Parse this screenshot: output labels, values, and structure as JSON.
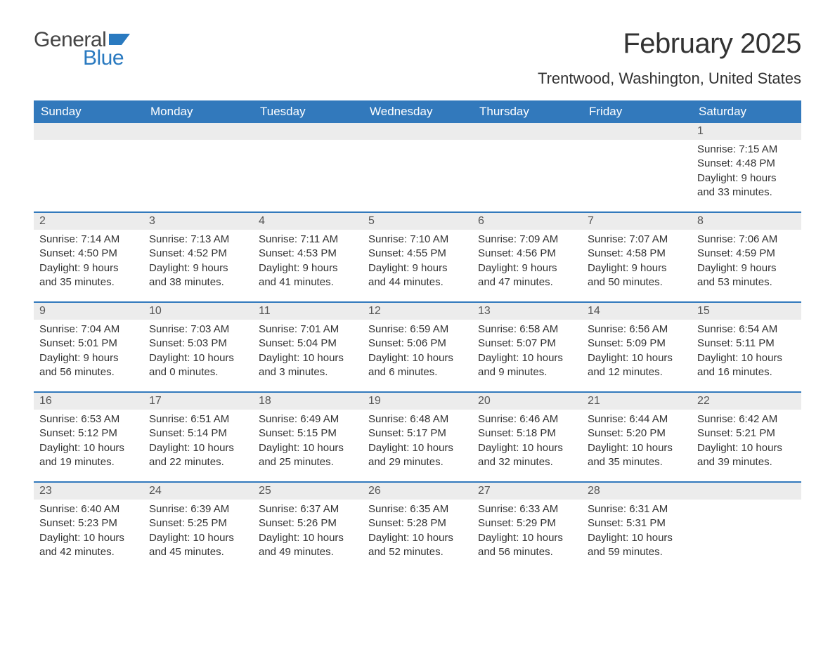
{
  "brand": {
    "word1": "General",
    "word2": "Blue",
    "word1_color": "#444444",
    "word2_color": "#2a7ac0",
    "flag_color": "#2a7ac0"
  },
  "title": "February 2025",
  "location": "Trentwood, Washington, United States",
  "colors": {
    "header_bg": "#3279bc",
    "header_text": "#ffffff",
    "week_divider": "#3279bc",
    "daynum_bg": "#ececec",
    "text": "#333333",
    "page_bg": "#ffffff"
  },
  "typography": {
    "title_fontsize": 40,
    "location_fontsize": 22,
    "weekday_fontsize": 17,
    "daynum_fontsize": 16,
    "body_fontsize": 15
  },
  "weekdays": [
    "Sunday",
    "Monday",
    "Tuesday",
    "Wednesday",
    "Thursday",
    "Friday",
    "Saturday"
  ],
  "weeks": [
    [
      null,
      null,
      null,
      null,
      null,
      null,
      {
        "n": "1",
        "sunrise": "Sunrise: 7:15 AM",
        "sunset": "Sunset: 4:48 PM",
        "dl1": "Daylight: 9 hours",
        "dl2": "and 33 minutes."
      }
    ],
    [
      {
        "n": "2",
        "sunrise": "Sunrise: 7:14 AM",
        "sunset": "Sunset: 4:50 PM",
        "dl1": "Daylight: 9 hours",
        "dl2": "and 35 minutes."
      },
      {
        "n": "3",
        "sunrise": "Sunrise: 7:13 AM",
        "sunset": "Sunset: 4:52 PM",
        "dl1": "Daylight: 9 hours",
        "dl2": "and 38 minutes."
      },
      {
        "n": "4",
        "sunrise": "Sunrise: 7:11 AM",
        "sunset": "Sunset: 4:53 PM",
        "dl1": "Daylight: 9 hours",
        "dl2": "and 41 minutes."
      },
      {
        "n": "5",
        "sunrise": "Sunrise: 7:10 AM",
        "sunset": "Sunset: 4:55 PM",
        "dl1": "Daylight: 9 hours",
        "dl2": "and 44 minutes."
      },
      {
        "n": "6",
        "sunrise": "Sunrise: 7:09 AM",
        "sunset": "Sunset: 4:56 PM",
        "dl1": "Daylight: 9 hours",
        "dl2": "and 47 minutes."
      },
      {
        "n": "7",
        "sunrise": "Sunrise: 7:07 AM",
        "sunset": "Sunset: 4:58 PM",
        "dl1": "Daylight: 9 hours",
        "dl2": "and 50 minutes."
      },
      {
        "n": "8",
        "sunrise": "Sunrise: 7:06 AM",
        "sunset": "Sunset: 4:59 PM",
        "dl1": "Daylight: 9 hours",
        "dl2": "and 53 minutes."
      }
    ],
    [
      {
        "n": "9",
        "sunrise": "Sunrise: 7:04 AM",
        "sunset": "Sunset: 5:01 PM",
        "dl1": "Daylight: 9 hours",
        "dl2": "and 56 minutes."
      },
      {
        "n": "10",
        "sunrise": "Sunrise: 7:03 AM",
        "sunset": "Sunset: 5:03 PM",
        "dl1": "Daylight: 10 hours",
        "dl2": "and 0 minutes."
      },
      {
        "n": "11",
        "sunrise": "Sunrise: 7:01 AM",
        "sunset": "Sunset: 5:04 PM",
        "dl1": "Daylight: 10 hours",
        "dl2": "and 3 minutes."
      },
      {
        "n": "12",
        "sunrise": "Sunrise: 6:59 AM",
        "sunset": "Sunset: 5:06 PM",
        "dl1": "Daylight: 10 hours",
        "dl2": "and 6 minutes."
      },
      {
        "n": "13",
        "sunrise": "Sunrise: 6:58 AM",
        "sunset": "Sunset: 5:07 PM",
        "dl1": "Daylight: 10 hours",
        "dl2": "and 9 minutes."
      },
      {
        "n": "14",
        "sunrise": "Sunrise: 6:56 AM",
        "sunset": "Sunset: 5:09 PM",
        "dl1": "Daylight: 10 hours",
        "dl2": "and 12 minutes."
      },
      {
        "n": "15",
        "sunrise": "Sunrise: 6:54 AM",
        "sunset": "Sunset: 5:11 PM",
        "dl1": "Daylight: 10 hours",
        "dl2": "and 16 minutes."
      }
    ],
    [
      {
        "n": "16",
        "sunrise": "Sunrise: 6:53 AM",
        "sunset": "Sunset: 5:12 PM",
        "dl1": "Daylight: 10 hours",
        "dl2": "and 19 minutes."
      },
      {
        "n": "17",
        "sunrise": "Sunrise: 6:51 AM",
        "sunset": "Sunset: 5:14 PM",
        "dl1": "Daylight: 10 hours",
        "dl2": "and 22 minutes."
      },
      {
        "n": "18",
        "sunrise": "Sunrise: 6:49 AM",
        "sunset": "Sunset: 5:15 PM",
        "dl1": "Daylight: 10 hours",
        "dl2": "and 25 minutes."
      },
      {
        "n": "19",
        "sunrise": "Sunrise: 6:48 AM",
        "sunset": "Sunset: 5:17 PM",
        "dl1": "Daylight: 10 hours",
        "dl2": "and 29 minutes."
      },
      {
        "n": "20",
        "sunrise": "Sunrise: 6:46 AM",
        "sunset": "Sunset: 5:18 PM",
        "dl1": "Daylight: 10 hours",
        "dl2": "and 32 minutes."
      },
      {
        "n": "21",
        "sunrise": "Sunrise: 6:44 AM",
        "sunset": "Sunset: 5:20 PM",
        "dl1": "Daylight: 10 hours",
        "dl2": "and 35 minutes."
      },
      {
        "n": "22",
        "sunrise": "Sunrise: 6:42 AM",
        "sunset": "Sunset: 5:21 PM",
        "dl1": "Daylight: 10 hours",
        "dl2": "and 39 minutes."
      }
    ],
    [
      {
        "n": "23",
        "sunrise": "Sunrise: 6:40 AM",
        "sunset": "Sunset: 5:23 PM",
        "dl1": "Daylight: 10 hours",
        "dl2": "and 42 minutes."
      },
      {
        "n": "24",
        "sunrise": "Sunrise: 6:39 AM",
        "sunset": "Sunset: 5:25 PM",
        "dl1": "Daylight: 10 hours",
        "dl2": "and 45 minutes."
      },
      {
        "n": "25",
        "sunrise": "Sunrise: 6:37 AM",
        "sunset": "Sunset: 5:26 PM",
        "dl1": "Daylight: 10 hours",
        "dl2": "and 49 minutes."
      },
      {
        "n": "26",
        "sunrise": "Sunrise: 6:35 AM",
        "sunset": "Sunset: 5:28 PM",
        "dl1": "Daylight: 10 hours",
        "dl2": "and 52 minutes."
      },
      {
        "n": "27",
        "sunrise": "Sunrise: 6:33 AM",
        "sunset": "Sunset: 5:29 PM",
        "dl1": "Daylight: 10 hours",
        "dl2": "and 56 minutes."
      },
      {
        "n": "28",
        "sunrise": "Sunrise: 6:31 AM",
        "sunset": "Sunset: 5:31 PM",
        "dl1": "Daylight: 10 hours",
        "dl2": "and 59 minutes."
      },
      null
    ]
  ]
}
